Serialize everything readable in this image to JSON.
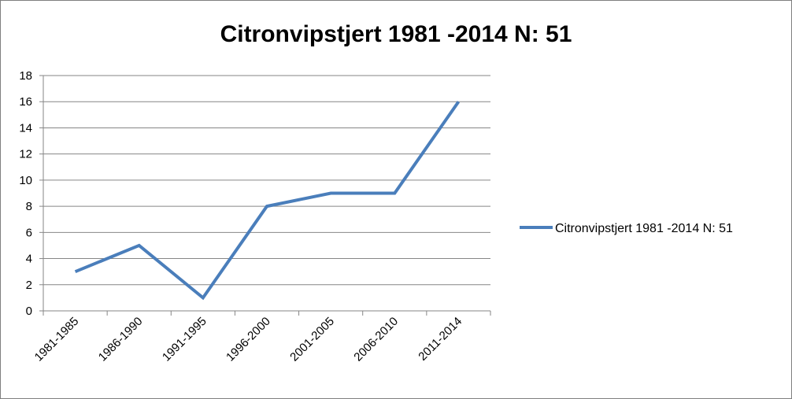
{
  "chart_data": {
    "type": "line",
    "title": "Citronvipstjert 1981 -2014 N: 51",
    "categories": [
      "1981-1985",
      "1986-1990",
      "1991-1995",
      "1996-2000",
      "2001-2005",
      "2006-2010",
      "2011-2014"
    ],
    "series": [
      {
        "name": "Citronvipstjert 1981 -2014 N: 51",
        "values": [
          3,
          5,
          1,
          8,
          9,
          9,
          16
        ],
        "color": "#4a7ebb"
      }
    ],
    "ylim": [
      0,
      18
    ],
    "yticks": [
      0,
      2,
      4,
      6,
      8,
      10,
      12,
      14,
      16,
      18
    ],
    "grid": true,
    "legend": "right",
    "xlabel": "",
    "ylabel": ""
  }
}
